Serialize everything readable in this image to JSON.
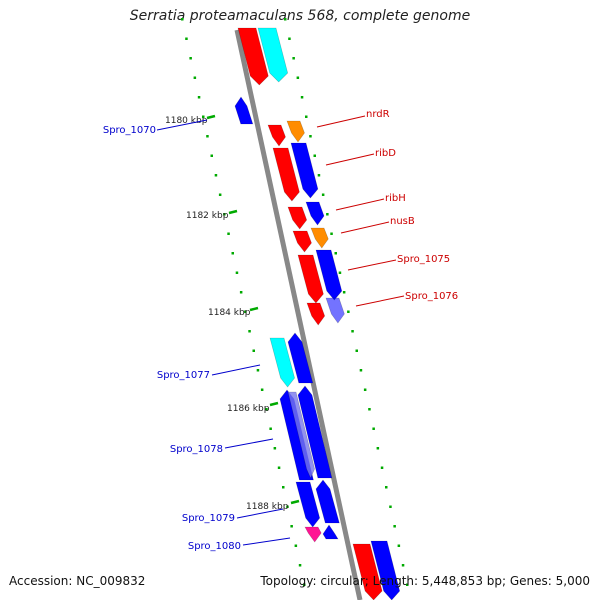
{
  "title": "Serratia proteamaculans 568, complete genome",
  "accession_label": "Accession: NC_009832",
  "summary_label": "Topology: circular; Length: 5,448,853 bp; Genes: 5,000",
  "colors": {
    "forward_gene": "#ff0000",
    "reverse_gene": "#0000ff",
    "rna_gene": "#ff8c00",
    "cyan_gene": "#00ffff",
    "magenta_gene": "#ff1493",
    "tick": "#00aa00",
    "backbone": "#888888",
    "label_forward": "#cc0000",
    "label_reverse": "#0000cc"
  },
  "ticks": [
    "1180 kbp",
    "1182 kbp",
    "1184 kbp",
    "1186 kbp",
    "1188 kbp"
  ],
  "right_labels": [
    "nrdR",
    "ribD",
    "ribH",
    "nusB",
    "Spro_1075",
    "Spro_1076"
  ],
  "left_labels": [
    "Spro_1070",
    "Spro_1077",
    "Spro_1078",
    "Spro_1079",
    "Spro_1080"
  ]
}
